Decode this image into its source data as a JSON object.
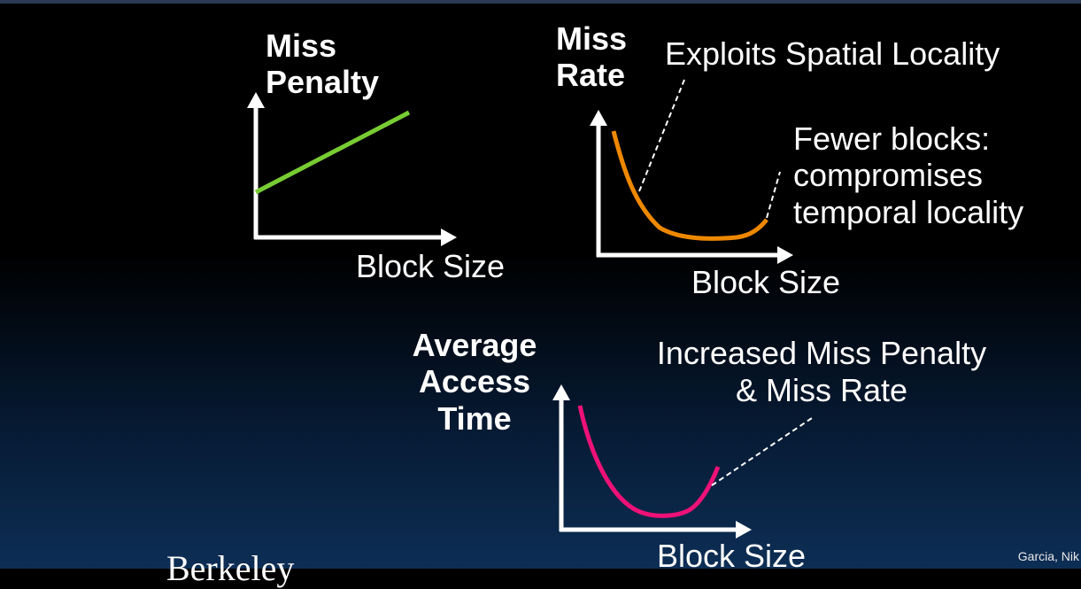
{
  "top_left": {
    "ylabel_line1": "Miss",
    "ylabel_line2": "Penalty",
    "xlabel": "Block Size"
  },
  "top_right": {
    "ylabel_line1": "Miss",
    "ylabel_line2": "Rate",
    "xlabel": "Block Size",
    "annotation_spatial": "Exploits Spatial Locality",
    "annotation_temporal_1": "Fewer blocks:",
    "annotation_temporal_2": "compromises",
    "annotation_temporal_3": "temporal locality"
  },
  "bottom": {
    "ylabel_line1": "Average",
    "ylabel_line2": "Access",
    "ylabel_line3": "Time",
    "xlabel": "Block Size",
    "annotation_1": "Increased Miss Penalty",
    "annotation_2": "& Miss Rate"
  },
  "footer_text": "Garcia, Nik",
  "bottom_left_text": "Berkeley",
  "colors": {
    "penalty_line": "#77cc33",
    "miss_rate_curve": "#ee8800",
    "access_time_curve": "#ee1177",
    "axis": "#ffffff"
  }
}
